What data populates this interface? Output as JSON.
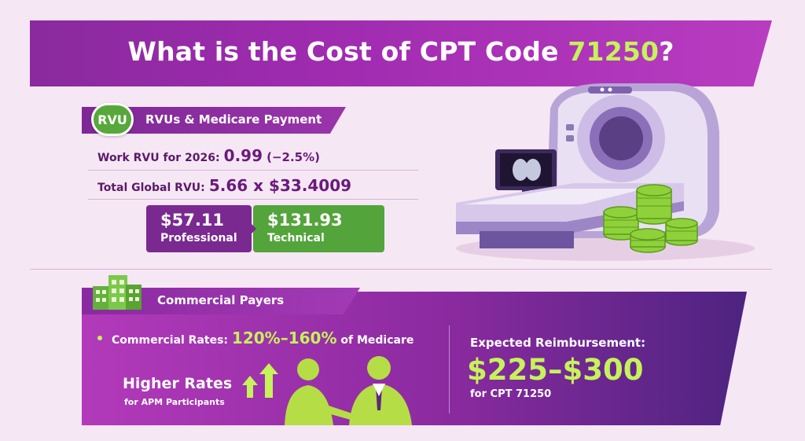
{
  "title": {
    "prefix": "What is the Cost of CPT Code ",
    "code": "71250",
    "suffix": "?"
  },
  "rvu_section": {
    "badge": "RVU",
    "heading": "RVUs & Medicare Payment",
    "work_rvu_label": "Work RVU for 2026:",
    "work_rvu_value": "0.99",
    "work_rvu_change": "(−2.5%)",
    "total_rvu_label": "Total Global RVU:",
    "total_rvu_value": "5.66 x $33.4009",
    "professional_amount": "$57.11",
    "professional_label": "Professional",
    "technical_amount": "$131.93",
    "technical_label": "Technical"
  },
  "commercial_section": {
    "heading": "Commercial Payers",
    "rates_label": "Commercial Rates:",
    "rates_value": "120%–160%",
    "rates_suffix": "of Medicare",
    "higher_title": "Higher Rates",
    "higher_sub": "for APM Participants",
    "expected_title": "Expected Reimbursement:",
    "expected_range": "$225–$300",
    "expected_sub": "for CPT 71250"
  },
  "colors": {
    "purple": "#8a2a9e",
    "green": "#53a43b",
    "lime": "#c6f25a",
    "background": "#f6e7f4"
  },
  "icons": [
    "ct-scanner-icon",
    "coin-stack-icon",
    "building-icon",
    "arrow-up-icon",
    "business-people-icon"
  ]
}
